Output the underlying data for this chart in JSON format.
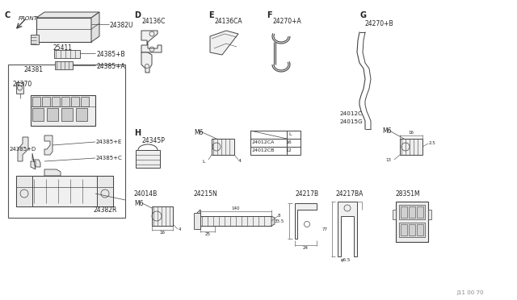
{
  "bg_color": "#ffffff",
  "line_color": "#444444",
  "text_color": "#222222",
  "parts": {
    "C_label": "C",
    "D_label": "D",
    "E_label": "E",
    "F_label": "F",
    "G_label": "G",
    "H_label": "H",
    "p24382U": "24382U",
    "p25411": "25411",
    "p24385B": "24385+B",
    "p24385A": "24385+A",
    "p24381": "24381",
    "p24370": "24370",
    "p24385D": "24385+D",
    "p24385E": "24385+E",
    "p24385C": "24385+C",
    "p24382R": "24382R",
    "p24136C": "24136C",
    "p24136CA": "24136CA",
    "p24270A": "24270+A",
    "p24270B": "24270+B",
    "p24012C": "24012C",
    "p24015G": "24015G",
    "p24345P": "24345P",
    "p24012CA": "24012CA",
    "p24012CB": "24012CB",
    "p24014B": "24014B",
    "p24215N": "24215N",
    "p24217B": "24217B",
    "p24217BA": "24217BA",
    "p28351M": "28351M",
    "front": "FRONT",
    "m6": "M6",
    "l_val": "L",
    "n16": "16",
    "n4": "4",
    "n13": "13",
    "n2_5": "2.5",
    "n140": "140",
    "n8": "8",
    "n25": "25",
    "n33_5": "33.5",
    "n24": "24",
    "n6_5": "φ6.5",
    "n77": "77",
    "watermark": "J11 00 70"
  }
}
